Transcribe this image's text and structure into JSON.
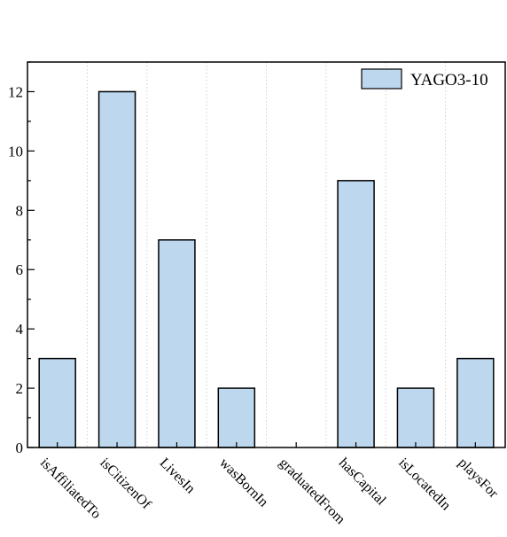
{
  "chart_data": {
    "type": "bar",
    "categories": [
      "isAffiliatedTo",
      "isCitizenOf",
      "LivesIn",
      "wasBornIn",
      "graduatedFrom",
      "hasCapital",
      "isLocatedIn",
      "playsFor"
    ],
    "series": [
      {
        "name": "YAGO3-10",
        "values": [
          3,
          12,
          7,
          2,
          0,
          9,
          2,
          3
        ]
      }
    ],
    "ylim": [
      0,
      13
    ],
    "yticks": [
      0,
      2,
      4,
      6,
      8,
      10,
      12
    ],
    "grid": "vertical-dotted",
    "legend": "top-right",
    "colors": {
      "bar_fill": "#bdd7ee",
      "bar_stroke": "#000000",
      "grid": "#cfcfcf"
    }
  }
}
